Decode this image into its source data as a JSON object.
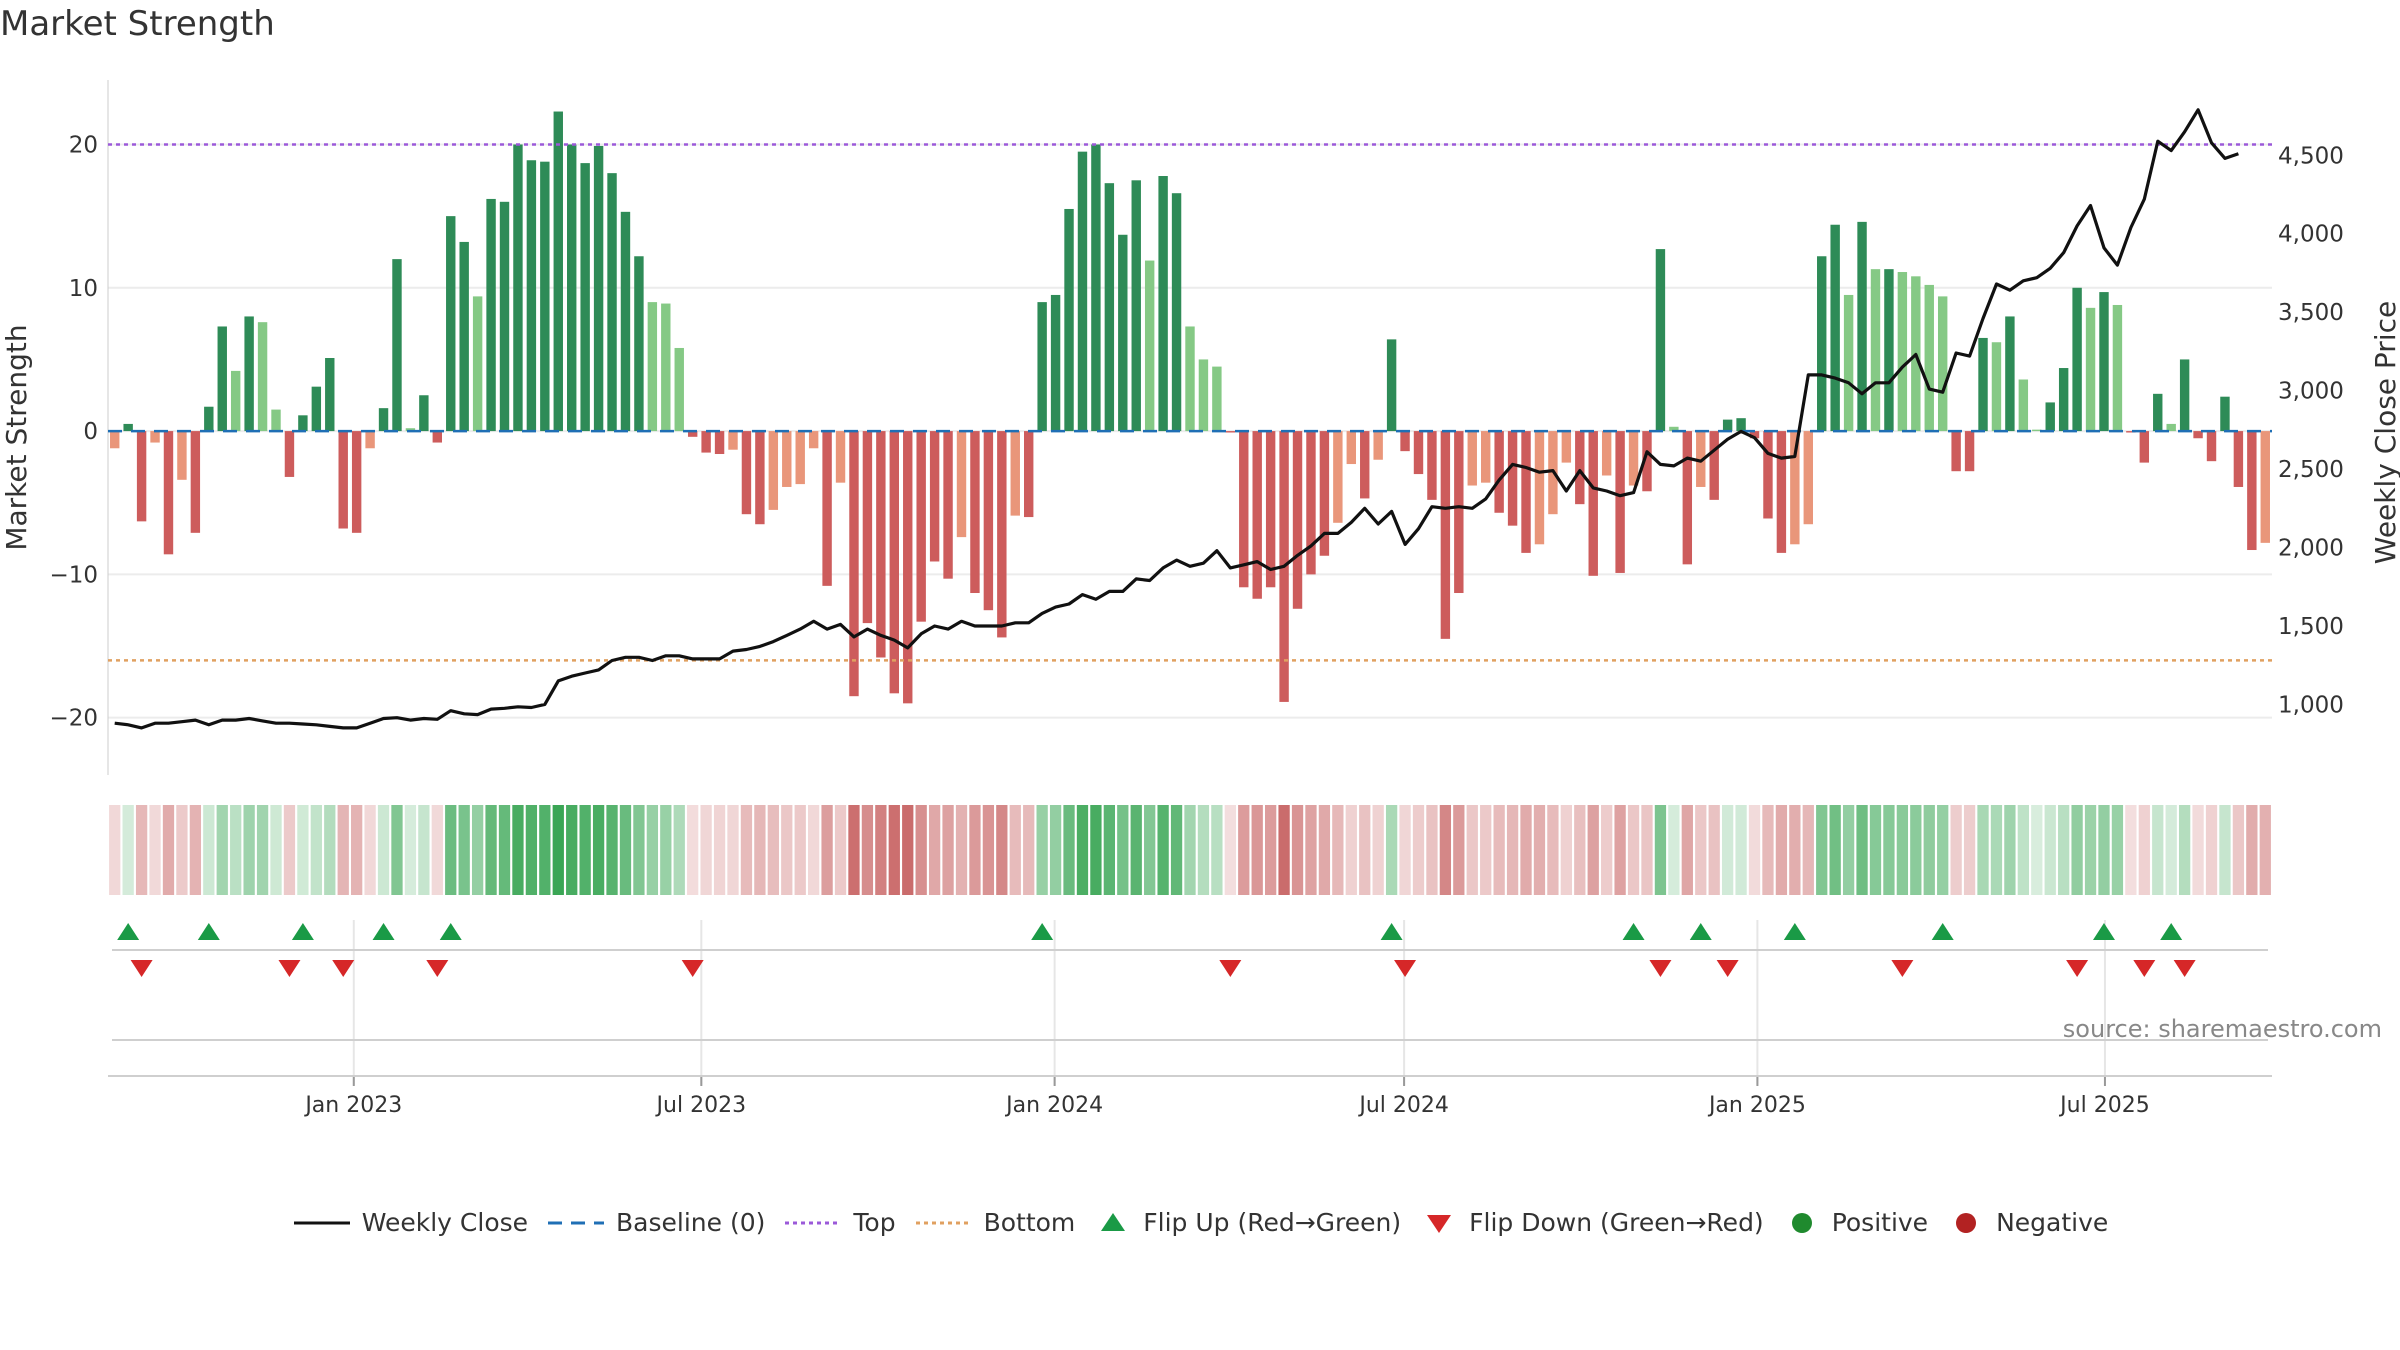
{
  "title": "Market Strength",
  "source": "source: sharemaestro.com",
  "chart_data": {
    "type": "bar",
    "ylabel_left": "Market Strength",
    "ylabel_right": "Weekly Close Price",
    "left_ticks": [
      20,
      10,
      0,
      -10,
      -20
    ],
    "left_tick_labels": [
      "20",
      "10",
      "0",
      "−10",
      "−20"
    ],
    "ylim_left": [
      -24,
      24.5
    ],
    "right_ticks": [
      1000,
      1500,
      2000,
      2500,
      3000,
      3500,
      4000,
      4500
    ],
    "right_tick_labels": [
      "1,000",
      "1,500",
      "2,000",
      "2,500",
      "3,000",
      "3,500",
      "4,000",
      "4,500"
    ],
    "ylim_right": [
      550,
      4980
    ],
    "x_start": "2022-08-26",
    "x_end": "2025-09-26",
    "x_ticks": [
      {
        "date": "2023-01-01",
        "label": "Jan 2023"
      },
      {
        "date": "2023-07-01",
        "label": "Jul 2023"
      },
      {
        "date": "2024-01-01",
        "label": "Jan 2024"
      },
      {
        "date": "2024-07-01",
        "label": "Jul 2024"
      },
      {
        "date": "2025-01-01",
        "label": "Jan 2025"
      },
      {
        "date": "2025-07-01",
        "label": "Jul 2025"
      }
    ],
    "top_line": 20,
    "bottom_line": -16,
    "colors": {
      "strong_positive": "#2e8b57",
      "weak_positive": "#85c985",
      "strong_negative": "#cd5c5c",
      "weak_negative": "#e9967a",
      "price_line": "#111111",
      "top_line": "#9b59d9",
      "bottom_line": "#e0a060",
      "baseline": "#1f6fb5",
      "flip_up": "#1a9a46",
      "flip_down": "#d62728"
    },
    "strength": [
      -1.2,
      0.5,
      -6.3,
      -0.8,
      -8.6,
      -3.4,
      -7.1,
      1.7,
      7.3,
      4.2,
      8.0,
      7.6,
      1.5,
      -3.2,
      1.1,
      3.1,
      5.1,
      -6.8,
      -7.1,
      -1.2,
      1.6,
      12.0,
      0.2,
      2.5,
      -0.8,
      15.0,
      13.2,
      9.4,
      16.2,
      16.0,
      20.0,
      18.9,
      18.8,
      22.3,
      20.0,
      18.7,
      19.9,
      18.0,
      15.3,
      12.2,
      9.0,
      8.9,
      5.8,
      -0.4,
      -1.5,
      -1.6,
      -1.3,
      -5.8,
      -6.5,
      -5.5,
      -3.9,
      -3.7,
      -1.2,
      -10.8,
      -3.6,
      -18.5,
      -13.4,
      -15.8,
      -18.3,
      -19.0,
      -13.3,
      -9.1,
      -10.3,
      -7.4,
      -11.3,
      -12.5,
      -14.4,
      -5.9,
      -6.0,
      9.0,
      9.5,
      15.5,
      19.5,
      20.0,
      17.3,
      13.7,
      17.5,
      11.9,
      17.8,
      16.6,
      7.3,
      5.0,
      4.5,
      -0.1,
      -10.9,
      -11.7,
      -10.9,
      -18.9,
      -12.4,
      -10.0,
      -8.7,
      -6.4,
      -2.3,
      -4.7,
      -2.0,
      6.4,
      -1.4,
      -3.0,
      -4.8,
      -14.5,
      -11.3,
      -3.8,
      -3.6,
      -5.7,
      -6.6,
      -8.5,
      -7.9,
      -5.8,
      -2.2,
      -5.1,
      -10.1,
      -3.1,
      -9.9,
      -3.8,
      -4.2,
      12.7,
      0.3,
      -9.3,
      -3.9,
      -4.8,
      0.8,
      0.9,
      -0.5,
      -6.1,
      -8.5,
      -7.9,
      -6.5,
      12.2,
      14.4,
      9.5,
      14.6,
      11.3,
      11.3,
      11.1,
      10.8,
      10.2,
      9.4,
      -2.8,
      -2.8,
      6.5,
      6.2,
      8.0,
      3.6,
      0.1,
      2.0,
      4.4,
      10.0,
      8.6,
      9.7,
      8.8,
      -0.1,
      -2.2,
      2.6,
      0.5,
      5.0,
      -0.5,
      -2.1,
      2.4,
      -3.9,
      -8.3,
      -7.8
    ],
    "weekly_close": [
      880,
      870,
      850,
      880,
      880,
      890,
      900,
      870,
      900,
      900,
      910,
      895,
      880,
      880,
      875,
      870,
      860,
      850,
      850,
      880,
      910,
      915,
      900,
      910,
      905,
      960,
      940,
      935,
      970,
      975,
      985,
      980,
      1000,
      1150,
      1180,
      1200,
      1220,
      1280,
      1300,
      1300,
      1280,
      1310,
      1310,
      1290,
      1290,
      1290,
      1340,
      1350,
      1370,
      1400,
      1440,
      1480,
      1530,
      1480,
      1510,
      1430,
      1480,
      1440,
      1410,
      1360,
      1450,
      1500,
      1480,
      1530,
      1500,
      1500,
      1500,
      1520,
      1520,
      1580,
      1620,
      1640,
      1700,
      1670,
      1720,
      1720,
      1800,
      1790,
      1870,
      1920,
      1880,
      1900,
      1980,
      1870,
      1890,
      1910,
      1860,
      1880,
      1950,
      2010,
      2090,
      2090,
      2160,
      2250,
      2150,
      2230,
      2020,
      2120,
      2260,
      2250,
      2260,
      2250,
      2310,
      2430,
      2530,
      2510,
      2480,
      2490,
      2360,
      2490,
      2380,
      2360,
      2330,
      2350,
      2610,
      2530,
      2520,
      2570,
      2550,
      2620,
      2690,
      2740,
      2700,
      2600,
      2570,
      2580,
      3100,
      3100,
      3080,
      3050,
      2980,
      3050,
      3050,
      3150,
      3230,
      3010,
      2990,
      3240,
      3220,
      3460,
      3680,
      3640,
      3700,
      3720,
      3780,
      3880,
      4050,
      4180,
      3910,
      3800,
      4040,
      4220,
      4590,
      4530,
      4650,
      4790,
      4580,
      4480,
      4510
    ],
    "flip_up_index": [
      1,
      7,
      14,
      20,
      25,
      69,
      95,
      113,
      118,
      125,
      136,
      148,
      153
    ],
    "flip_down_index": [
      2,
      13,
      17,
      24,
      43,
      83,
      96,
      115,
      120,
      133,
      146,
      151,
      154
    ]
  },
  "legend": [
    {
      "key": "weekly_close",
      "label": "Weekly Close"
    },
    {
      "key": "baseline",
      "label": "Baseline (0)"
    },
    {
      "key": "top",
      "label": "Top"
    },
    {
      "key": "bottom",
      "label": "Bottom"
    },
    {
      "key": "flip_up",
      "label": "Flip Up (Red→Green)"
    },
    {
      "key": "flip_down",
      "label": "Flip Down (Green→Red)"
    },
    {
      "key": "positive",
      "label": "Positive"
    },
    {
      "key": "negative",
      "label": "Negative"
    }
  ]
}
